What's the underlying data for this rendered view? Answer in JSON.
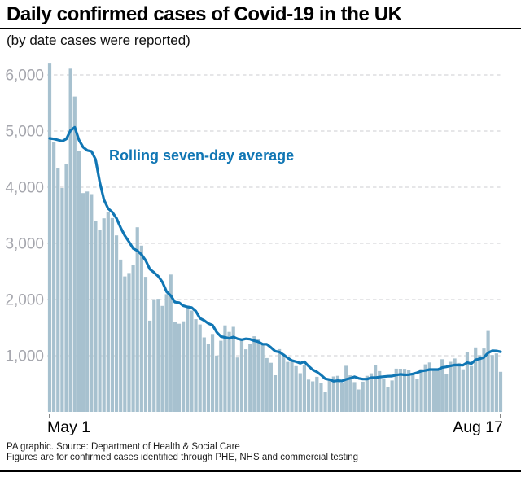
{
  "header": {
    "title": "Daily confirmed cases of Covid-19 in the UK",
    "subtitle": "(by date cases were reported)"
  },
  "annotation": {
    "label": "Rolling seven-day average"
  },
  "footer": {
    "line1": "PA graphic. Source: Department of Health & Social Care",
    "line2": "Figures are for confirmed cases identified through PHE, NHS and commercial testing"
  },
  "colors": {
    "bar": "#a7c1cf",
    "line": "#1076b4",
    "grid": "#d6d8db",
    "tick_label": "#a5a6ad",
    "axis_text": "#000000",
    "rule": "#000000"
  },
  "chart_data": {
    "type": "bar",
    "title": "Daily confirmed cases of Covid-19 in the UK",
    "subtitle": "(by date cases were reported)",
    "grid": "dashed horizontal gridlines",
    "legend": "inline label on line series",
    "x_axis": {
      "start_label": "May 1",
      "end_label": "Aug 17",
      "n_days": 109
    },
    "y_axis": {
      "min": 0,
      "max": 6300,
      "ticks": [
        {
          "value": 1000,
          "label": "1,000"
        },
        {
          "value": 2000,
          "label": "2,000"
        },
        {
          "value": 3000,
          "label": "3,000"
        },
        {
          "value": 4000,
          "label": "4,000"
        },
        {
          "value": 5000,
          "label": "5,000"
        },
        {
          "value": 6000,
          "label": "6,000"
        }
      ]
    },
    "series": [
      {
        "name": "Daily confirmed cases",
        "type": "bar",
        "values": [
          6201,
          4806,
          4339,
          3985,
          4406,
          6111,
          5614,
          4649,
          3896,
          3923,
          3877,
          3403,
          3242,
          3446,
          3560,
          3451,
          3142,
          2711,
          2412,
          2472,
          2615,
          3287,
          2959,
          2405,
          1625,
          2004,
          2013,
          1887,
          2095,
          2445,
          1604,
          1570,
          1613,
          1871,
          1805,
          1650,
          1557,
          1326,
          1205,
          1387,
          1003,
          1266,
          1541,
          1425,
          1514,
          968,
          1279,
          1115,
          1218,
          1346,
          1295,
          1221,
          958,
          874,
          652,
          1118,
          1006,
          890,
          901,
          815,
          689,
          829,
          576,
          544,
          624,
          516,
          352,
          581,
          630,
          642,
          512,
          820,
          650,
          530,
          398,
          538,
          642,
          687,
          827,
          726,
          580,
          445,
          560,
          769,
          768,
          767,
          747,
          685,
          581,
          763,
          846,
          880,
          771,
          743,
          938,
          670,
          892,
          950,
          871,
          758,
          1062,
          816,
          1148,
          1009,
          1129,
          1441,
          1012,
          1040,
          713
        ]
      },
      {
        "name": "Rolling seven-day average",
        "type": "line",
        "values": [
          4870,
          4860,
          4840,
          4820,
          4860,
          5010,
          5066,
          4844,
          4714,
          4655,
          4639,
          4496,
          4086,
          3777,
          3621,
          3557,
          3446,
          3279,
          3138,
          3028,
          2909,
          2870,
          2800,
          2694,
          2539,
          2481,
          2415,
          2311,
          2141,
          2068,
          1953,
          1945,
          1890,
          1869,
          1858,
          1794,
          1667,
          1627,
          1575,
          1543,
          1419,
          1342,
          1326,
          1308,
          1334,
          1301,
          1285,
          1301,
          1294,
          1266,
          1248,
          1206,
          1205,
          1147,
          1081,
          1066,
          1018,
          960,
          914,
          894,
          867,
          893,
          815,
          749,
          711,
          656,
          590,
          575,
          546,
          556,
          551,
          579,
          598,
          624,
          597,
          584,
          584,
          609,
          610,
          621,
          628,
          635,
          638,
          656,
          668,
          659,
          662,
          677,
          697,
          726,
          737,
          753,
          753,
          753,
          789,
          802,
          820,
          835,
          834,
          832,
          877,
          860,
          928,
          945,
          970,
          1052,
          1088,
          1085,
          1070
        ]
      }
    ]
  }
}
